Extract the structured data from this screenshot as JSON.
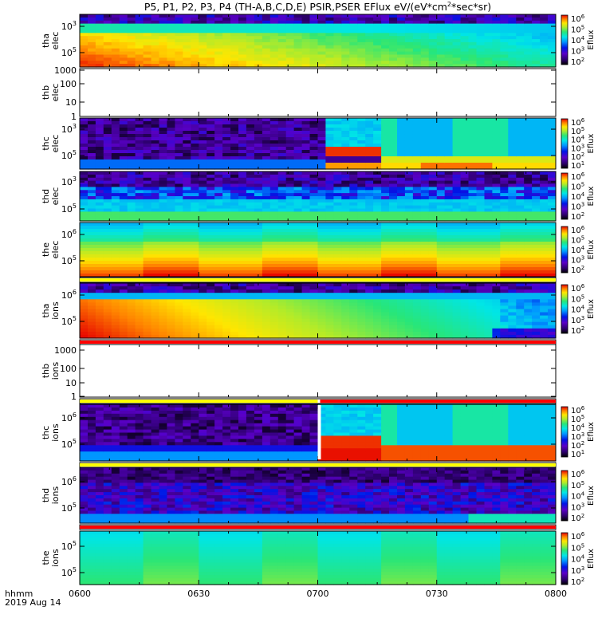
{
  "title": "P5, P1, P2, P3, P4 (TH-A,B,C,D,E) PSIR,PSER EFlux eV/(eV*cm",
  "title_sup": "2",
  "title_end": "*sec*sr)",
  "footer": {
    "line1": "hhmm",
    "line2": "2019 Aug 14"
  },
  "chart_data": {
    "type": "heatmap",
    "x_ticks": [
      "0600",
      "0630",
      "0700",
      "0730",
      "0800"
    ],
    "x_range": [
      "06:00",
      "08:00"
    ],
    "colorbar_label": "Eflux",
    "panels": [
      {
        "id": "tha-elec",
        "ylabel": [
          "tha",
          "elec"
        ],
        "yticks": [
          "10",
          "10"
        ],
        "ytick_exps": [
          "3",
          "5"
        ],
        "colorbar": {
          "ticks": [
            "10",
            "10",
            "10",
            "10",
            "10"
          ],
          "exps": [
            "6",
            "5",
            "4",
            "3",
            "2"
          ]
        },
        "gap_after": false
      },
      {
        "id": "thb-elec",
        "ylabel": [
          "thb",
          "elec"
        ],
        "yticks": [
          "1000",
          "100",
          "10",
          "1"
        ],
        "ytick_exps": [],
        "colorbar": null,
        "gap_after": false
      },
      {
        "id": "thc-elec",
        "ylabel": [
          "thc",
          "elec"
        ],
        "yticks": [
          "10",
          "10"
        ],
        "ytick_exps": [
          "3",
          "5"
        ],
        "colorbar": {
          "ticks": [
            "10",
            "10",
            "10",
            "10",
            "10",
            "10"
          ],
          "exps": [
            "6",
            "5",
            "4",
            "3",
            "2",
            "1"
          ]
        },
        "gap_after": false
      },
      {
        "id": "thd-elec",
        "ylabel": [
          "thd",
          "elec"
        ],
        "yticks": [
          "10",
          "10"
        ],
        "ytick_exps": [
          "3",
          "5"
        ],
        "colorbar": {
          "ticks": [
            "10",
            "10",
            "10",
            "10",
            "10"
          ],
          "exps": [
            "6",
            "5",
            "4",
            "3",
            "2"
          ]
        },
        "gap_after": false
      },
      {
        "id": "the-elec",
        "ylabel": [
          "the",
          "elec"
        ],
        "yticks": [
          "10",
          "10"
        ],
        "ytick_exps": [
          "6",
          "5"
        ],
        "colorbar": {
          "ticks": [
            "10",
            "10",
            "10",
            "10",
            "10"
          ],
          "exps": [
            "6",
            "5",
            "4",
            "3",
            "2"
          ]
        },
        "gap_after": true
      },
      {
        "id": "tha-ions",
        "ylabel": [
          "tha",
          "ions"
        ],
        "yticks": [
          "10",
          "10"
        ],
        "ytick_exps": [
          "6",
          "5"
        ],
        "colorbar": {
          "ticks": [
            "10",
            "10",
            "10",
            "10",
            "10"
          ],
          "exps": [
            "6",
            "5",
            "4",
            "3",
            "2"
          ]
        },
        "gap_after": true
      },
      {
        "id": "thb-ions",
        "ylabel": [
          "thb",
          "ions"
        ],
        "yticks": [
          "1000",
          "100",
          "10",
          "1"
        ],
        "ytick_exps": [],
        "colorbar": null,
        "gap_after": true
      },
      {
        "id": "thc-ions",
        "ylabel": [
          "thc",
          "ions"
        ],
        "yticks": [
          "10",
          "10"
        ],
        "ytick_exps": [
          "6",
          "5"
        ],
        "colorbar": {
          "ticks": [
            "10",
            "10",
            "10",
            "10",
            "10",
            "10"
          ],
          "exps": [
            "6",
            "5",
            "4",
            "3",
            "2",
            "1"
          ]
        },
        "gap_after": true
      },
      {
        "id": "thd-ions",
        "ylabel": [
          "thd",
          "ions"
        ],
        "yticks": [
          "10",
          "10"
        ],
        "ytick_exps": [
          "6",
          "5"
        ],
        "colorbar": {
          "ticks": [
            "10",
            "10",
            "10",
            "10",
            "10"
          ],
          "exps": [
            "6",
            "5",
            "4",
            "3",
            "2"
          ]
        },
        "gap_after": true
      },
      {
        "id": "the-ions",
        "ylabel": [
          "the",
          "ions"
        ],
        "yticks": [
          "10",
          "10"
        ],
        "ytick_exps": [
          "5",
          "5"
        ],
        "colorbar": {
          "ticks": [
            "10",
            "10",
            "10",
            "10",
            "10"
          ],
          "exps": [
            "6",
            "5",
            "4",
            "3",
            "2"
          ]
        },
        "gap_after": false
      }
    ]
  }
}
